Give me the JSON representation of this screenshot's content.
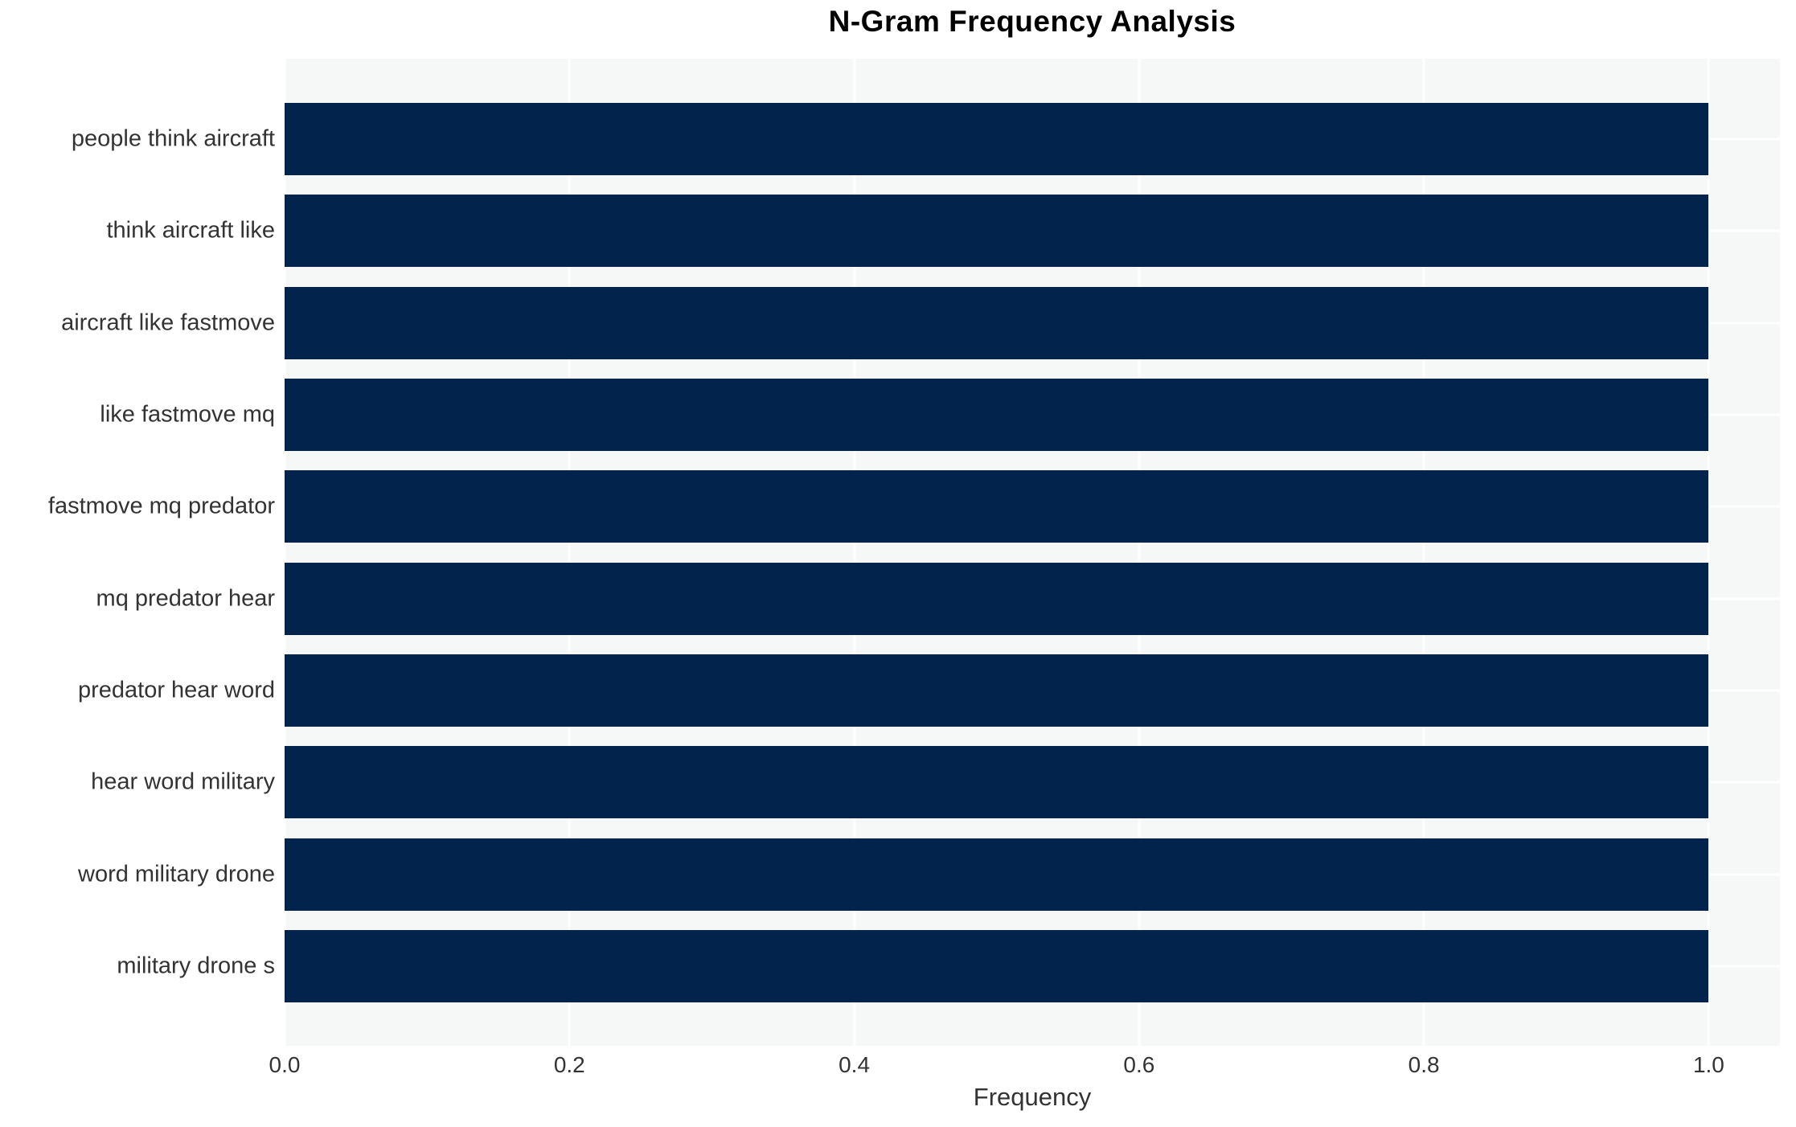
{
  "chart_data": {
    "type": "bar",
    "orientation": "horizontal",
    "title": "N-Gram Frequency Analysis",
    "xlabel": "Frequency",
    "ylabel": "",
    "categories": [
      "people think aircraft",
      "think aircraft like",
      "aircraft like fastmove",
      "like fastmove mq",
      "fastmove mq predator",
      "mq predator hear",
      "predator hear word",
      "hear word military",
      "word military drone",
      "military drone s"
    ],
    "values": [
      1.0,
      1.0,
      1.0,
      1.0,
      1.0,
      1.0,
      1.0,
      1.0,
      1.0,
      1.0
    ],
    "xticks": [
      0.0,
      0.2,
      0.4,
      0.6,
      0.8,
      1.0
    ],
    "xtick_labels": [
      "0.0",
      "0.2",
      "0.4",
      "0.6",
      "0.8",
      "1.0"
    ],
    "xlim": [
      0.0,
      1.05
    ],
    "grid": true,
    "legend": false,
    "colors": {
      "bar": "#02234c",
      "plot_background": "#f6f7f7",
      "figure_background": "#ffffff",
      "gridline": "#ffffff",
      "title_text": "#000000",
      "axis_text": "#333333"
    }
  }
}
